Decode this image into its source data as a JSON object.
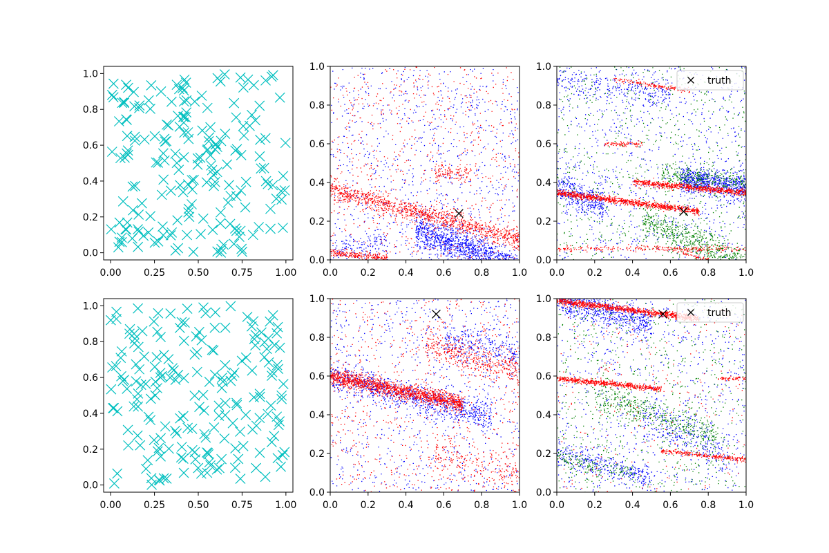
{
  "colors": {
    "cyan": "#00bfbf",
    "blue": "#0000ff",
    "red": "#ff0000",
    "green": "#008000",
    "truth": "#000000"
  },
  "chart_data": [
    {
      "id": "r0c0",
      "type": "scatter",
      "title": "",
      "marker": "x",
      "series": [
        {
          "name": "samples",
          "color": "cyan",
          "count": 200,
          "seed": 11
        }
      ],
      "xlim": [
        -0.04,
        1.04
      ],
      "ylim": [
        -0.04,
        1.04
      ],
      "xticks": [
        0.0,
        0.25,
        0.5,
        0.75,
        1.0
      ],
      "xtick_labels": [
        "0.00",
        "0.25",
        "0.50",
        "0.75",
        "1.00"
      ],
      "yticks": [
        0.0,
        0.2,
        0.4,
        0.6,
        0.8,
        1.0
      ],
      "ytick_labels": [
        "0.0",
        "0.2",
        "0.4",
        "0.6",
        "0.8",
        "1.0"
      ]
    },
    {
      "id": "r0c1",
      "type": "scatter",
      "title": "",
      "marker": "dot",
      "xlim": [
        0,
        1
      ],
      "ylim": [
        0,
        1
      ],
      "xticks": [
        0.0,
        0.2,
        0.4,
        0.6,
        0.8,
        1.0
      ],
      "xtick_labels": [
        "0.0",
        "0.2",
        "0.4",
        "0.6",
        "0.8",
        "1.0"
      ],
      "yticks": [
        0.0,
        0.2,
        0.4,
        0.6,
        0.8,
        1.0
      ],
      "ytick_labels": [
        "0.0",
        "0.2",
        "0.4",
        "0.6",
        "0.8",
        "1.0"
      ],
      "series": [
        {
          "name": "blue",
          "color": "blue",
          "uniform": 900,
          "clusters": [
            {
              "x": [
                0.45,
                0.98
              ],
              "y0": 0.33,
              "slope": -0.38,
              "sd": 0.045,
              "n": 1300
            },
            {
              "x": [
                0.0,
                0.3
              ],
              "y0": 0.06,
              "slope": 0.1,
              "sd": 0.03,
              "n": 120
            }
          ],
          "seed": 21
        },
        {
          "name": "red",
          "color": "red",
          "uniform": 700,
          "clusters": [
            {
              "x": [
                0.0,
                1.0
              ],
              "y0": 0.36,
              "slope": -0.25,
              "sd": 0.025,
              "n": 1100
            },
            {
              "x": [
                0.0,
                0.3
              ],
              "y0": 0.04,
              "slope": -0.1,
              "sd": 0.01,
              "n": 200
            },
            {
              "x": [
                0.55,
                0.75
              ],
              "y0": 0.45,
              "slope": 0.0,
              "sd": 0.02,
              "n": 100
            }
          ],
          "seed": 22
        }
      ],
      "truth": {
        "x": 0.68,
        "y": 0.24
      }
    },
    {
      "id": "r0c2",
      "type": "scatter",
      "title": "",
      "marker": "dot",
      "xlim": [
        0,
        1
      ],
      "ylim": [
        0,
        1
      ],
      "xticks": [
        0.0,
        0.2,
        0.4,
        0.6,
        0.8,
        1.0
      ],
      "xtick_labels": [
        "0.0",
        "0.2",
        "0.4",
        "0.6",
        "0.8",
        "1.0"
      ],
      "yticks": [
        0.0,
        0.2,
        0.4,
        0.6,
        0.8,
        1.0
      ],
      "ytick_labels": [
        "0.0",
        "0.2",
        "0.4",
        "0.6",
        "0.8",
        "1.0"
      ],
      "series": [
        {
          "name": "blue",
          "color": "blue",
          "uniform": 900,
          "clusters": [
            {
              "x": [
                0.65,
                1.0
              ],
              "y0": 0.48,
              "slope": -0.1,
              "sd": 0.03,
              "n": 700
            },
            {
              "x": [
                0.0,
                0.25
              ],
              "y0": 0.38,
              "slope": -0.4,
              "sd": 0.04,
              "n": 350
            },
            {
              "x": [
                0.0,
                0.6
              ],
              "y0": 0.93,
              "slope": -0.1,
              "sd": 0.04,
              "n": 250
            }
          ],
          "seed": 31
        },
        {
          "name": "green",
          "color": "green",
          "uniform": 700,
          "clusters": [
            {
              "x": [
                0.45,
                1.0
              ],
              "y0": 0.42,
              "slope": -0.45,
              "sd": 0.04,
              "n": 600
            },
            {
              "x": [
                0.55,
                1.0
              ],
              "y0": 0.5,
              "slope": -0.1,
              "sd": 0.03,
              "n": 300
            }
          ],
          "seed": 32
        },
        {
          "name": "red",
          "color": "red",
          "uniform": 0,
          "clusters": [
            {
              "x": [
                0.0,
                0.75
              ],
              "y0": 0.35,
              "slope": -0.13,
              "sd": 0.008,
              "n": 900
            },
            {
              "x": [
                0.4,
                1.0
              ],
              "y0": 0.44,
              "slope": -0.09,
              "sd": 0.008,
              "n": 650
            },
            {
              "x": [
                0.0,
                1.0
              ],
              "y0": 0.06,
              "slope": 0.0,
              "sd": 0.008,
              "n": 250
            },
            {
              "x": [
                0.3,
                0.7
              ],
              "y0": 0.98,
              "slope": -0.15,
              "sd": 0.006,
              "n": 150
            },
            {
              "x": [
                0.25,
                0.45
              ],
              "y0": 0.6,
              "slope": 0.0,
              "sd": 0.006,
              "n": 80
            },
            {
              "x": [
                0.6,
                1.0
              ],
              "y0": 0.24,
              "slope": -0.3,
              "sd": 0.006,
              "n": 120
            }
          ],
          "seed": 33
        }
      ],
      "truth": {
        "x": 0.67,
        "y": 0.25
      },
      "legend": {
        "label": "truth",
        "position": "top-right"
      }
    },
    {
      "id": "r1c0",
      "type": "scatter",
      "title": "",
      "marker": "x",
      "series": [
        {
          "name": "samples",
          "color": "cyan",
          "count": 200,
          "seed": 41
        }
      ],
      "xlim": [
        -0.04,
        1.04
      ],
      "ylim": [
        -0.04,
        1.04
      ],
      "xticks": [
        0.0,
        0.25,
        0.5,
        0.75,
        1.0
      ],
      "xtick_labels": [
        "0.00",
        "0.25",
        "0.50",
        "0.75",
        "1.00"
      ],
      "yticks": [
        0.0,
        0.2,
        0.4,
        0.6,
        0.8,
        1.0
      ],
      "ytick_labels": [
        "0.0",
        "0.2",
        "0.4",
        "0.6",
        "0.8",
        "1.0"
      ]
    },
    {
      "id": "r1c1",
      "type": "scatter",
      "title": "",
      "marker": "dot",
      "xlim": [
        0,
        1
      ],
      "ylim": [
        0,
        1
      ],
      "xticks": [
        0.0,
        0.2,
        0.4,
        0.6,
        0.8,
        1.0
      ],
      "xtick_labels": [
        "0.0",
        "0.2",
        "0.4",
        "0.6",
        "0.8",
        "1.0"
      ],
      "yticks": [
        0.0,
        0.2,
        0.4,
        0.6,
        0.8,
        1.0
      ],
      "ytick_labels": [
        "0.0",
        "0.2",
        "0.4",
        "0.6",
        "0.8",
        "1.0"
      ],
      "series": [
        {
          "name": "blue",
          "color": "blue",
          "uniform": 800,
          "clusters": [
            {
              "x": [
                0.0,
                0.85
              ],
              "y0": 0.6,
              "slope": -0.25,
              "sd": 0.035,
              "n": 900
            },
            {
              "x": [
                0.6,
                1.0
              ],
              "y0": 0.95,
              "slope": -0.25,
              "sd": 0.05,
              "n": 300
            }
          ],
          "seed": 51
        },
        {
          "name": "red",
          "color": "red",
          "uniform": 700,
          "clusters": [
            {
              "x": [
                0.0,
                0.7
              ],
              "y0": 0.6,
              "slope": -0.2,
              "sd": 0.02,
              "n": 1400
            },
            {
              "x": [
                0.5,
                1.0
              ],
              "y0": 0.92,
              "slope": -0.3,
              "sd": 0.04,
              "n": 400
            },
            {
              "x": [
                0.55,
                1.0
              ],
              "y0": 0.3,
              "slope": -0.2,
              "sd": 0.05,
              "n": 200
            }
          ],
          "seed": 52
        }
      ],
      "truth": {
        "x": 0.56,
        "y": 0.92
      }
    },
    {
      "id": "r1c2",
      "type": "scatter",
      "title": "",
      "marker": "dot",
      "xlim": [
        0,
        1
      ],
      "ylim": [
        0,
        1
      ],
      "xticks": [
        0.0,
        0.2,
        0.4,
        0.6,
        0.8,
        1.0
      ],
      "xtick_labels": [
        "0.0",
        "0.2",
        "0.4",
        "0.6",
        "0.8",
        "1.0"
      ],
      "yticks": [
        0.0,
        0.2,
        0.4,
        0.6,
        0.8,
        1.0
      ],
      "ytick_labels": [
        "0.0",
        "0.2",
        "0.4",
        "0.6",
        "0.8",
        "1.0"
      ],
      "series": [
        {
          "name": "blue",
          "color": "blue",
          "uniform": 800,
          "clusters": [
            {
              "x": [
                0.0,
                0.5
              ],
              "y0": 1.0,
              "slope": -0.25,
              "sd": 0.04,
              "n": 650
            },
            {
              "x": [
                0.0,
                0.5
              ],
              "y0": 0.2,
              "slope": -0.25,
              "sd": 0.03,
              "n": 300
            },
            {
              "x": [
                0.45,
                0.9
              ],
              "y0": 0.6,
              "slope": -0.45,
              "sd": 0.05,
              "n": 250
            }
          ],
          "seed": 61
        },
        {
          "name": "green",
          "color": "green",
          "uniform": 700,
          "clusters": [
            {
              "x": [
                0.2,
                0.85
              ],
              "y0": 0.58,
              "slope": -0.35,
              "sd": 0.04,
              "n": 450
            },
            {
              "x": [
                0.0,
                0.4
              ],
              "y0": 0.18,
              "slope": -0.2,
              "sd": 0.03,
              "n": 150
            }
          ],
          "seed": 62
        },
        {
          "name": "red",
          "color": "red",
          "uniform": 250,
          "clusters": [
            {
              "x": [
                0.0,
                0.75
              ],
              "y0": 0.99,
              "slope": -0.12,
              "sd": 0.008,
              "n": 900
            },
            {
              "x": [
                0.0,
                0.55
              ],
              "y0": 0.59,
              "slope": -0.1,
              "sd": 0.007,
              "n": 550
            },
            {
              "x": [
                0.55,
                1.0
              ],
              "y0": 0.27,
              "slope": -0.1,
              "sd": 0.006,
              "n": 250
            },
            {
              "x": [
                0.85,
                1.0
              ],
              "y0": 0.59,
              "slope": 0.0,
              "sd": 0.005,
              "n": 60
            }
          ],
          "seed": 63
        }
      ],
      "truth": {
        "x": 0.56,
        "y": 0.92
      },
      "legend": {
        "label": "truth",
        "position": "top-right"
      }
    }
  ]
}
